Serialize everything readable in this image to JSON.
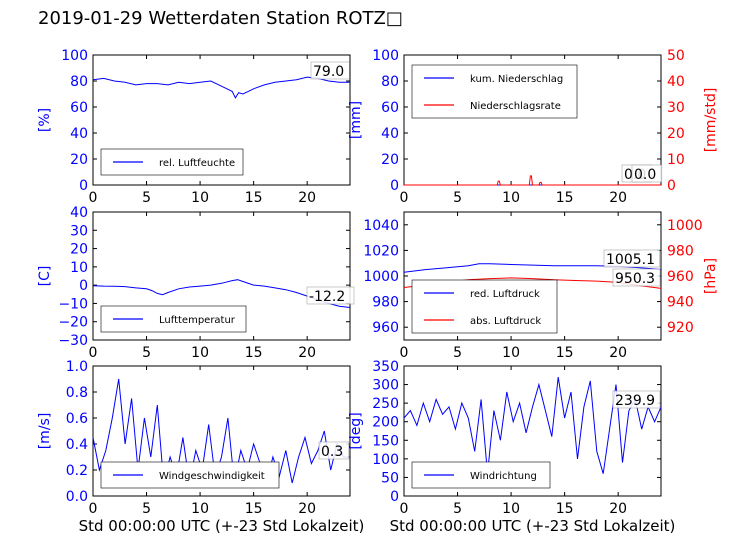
{
  "title": "2019-01-29 Wetterdaten Station ROTZ□",
  "colors": {
    "primary": "#0000ff",
    "secondary": "#ff0000",
    "text": "#000000"
  },
  "chart_data": [
    {
      "id": "humidity",
      "type": "line",
      "xlim": [
        0,
        24
      ],
      "ylim": [
        0,
        100
      ],
      "xticks": [
        "0",
        "5",
        "10",
        "15",
        "20"
      ],
      "yticks": [
        "0",
        "20",
        "40",
        "60",
        "80",
        "100"
      ],
      "ylabel": "[%]",
      "xlabel": "",
      "legend": [
        "rel. Luftfeuchte"
      ],
      "legend_position": "lower-left",
      "last_value": "79.0",
      "series": [
        {
          "name": "rel. Luftfeuchte",
          "color": "#0000ff",
          "x": [
            0,
            1,
            2,
            3,
            4,
            5,
            6,
            7,
            8,
            9,
            10,
            11,
            12,
            12.5,
            13,
            13.3,
            13.6,
            14,
            14.5,
            15,
            16,
            17,
            18,
            19,
            20,
            21,
            22,
            23,
            24
          ],
          "y": [
            81,
            82,
            80,
            79,
            77,
            78,
            78,
            77,
            79,
            78,
            79,
            80,
            76,
            74,
            72,
            67,
            71,
            70,
            72,
            74,
            77,
            79,
            80,
            81,
            83,
            82,
            80,
            79,
            79
          ]
        }
      ]
    },
    {
      "id": "precipitation",
      "type": "line",
      "xlim": [
        0,
        24
      ],
      "ylim": [
        0,
        100
      ],
      "y2lim": [
        0,
        50
      ],
      "xticks": [
        "0",
        "5",
        "10",
        "15",
        "20"
      ],
      "yticks": [
        "0",
        "20",
        "40",
        "60",
        "80",
        "100"
      ],
      "y2ticks": [
        "0",
        "10",
        "20",
        "30",
        "40",
        "50"
      ],
      "ylabel": "[mm]",
      "y2label": "[mm/std]",
      "legend": [
        "kum. Niederschlag",
        "Niederschlagsrate"
      ],
      "legend_position": "upper-left",
      "last_value_1": "0.0",
      "last_value_2": "0.0",
      "series": [
        {
          "name": "kum. Niederschlag",
          "color": "#0000ff",
          "x": [
            0,
            24
          ],
          "y": [
            0,
            0
          ]
        },
        {
          "name": "Niederschlagsrate",
          "color": "#ff0000",
          "axis": "right",
          "x": [
            0,
            8.7,
            8.8,
            8.9,
            9,
            11.7,
            11.8,
            11.9,
            12,
            12.6,
            12.7,
            12.8,
            12.9,
            24
          ],
          "y": [
            0,
            0,
            1.5,
            1.5,
            0,
            0,
            3.5,
            3.5,
            0,
            0,
            1,
            1,
            0,
            0
          ]
        }
      ]
    },
    {
      "id": "temperature",
      "type": "line",
      "xlim": [
        0,
        24
      ],
      "ylim": [
        -30,
        40
      ],
      "xticks": [
        "0",
        "5",
        "10",
        "15",
        "20"
      ],
      "yticks": [
        "−30",
        "−20",
        "−10",
        "0",
        "10",
        "20",
        "30",
        "40"
      ],
      "ylabel": "[C]",
      "legend": [
        "Lufttemperatur"
      ],
      "legend_position": "lower-left",
      "last_value": "-12.2",
      "series": [
        {
          "name": "Lufttemperatur",
          "color": "#0000ff",
          "x": [
            0,
            1,
            2,
            3,
            4,
            5,
            5.5,
            6,
            6.5,
            7,
            8,
            9,
            10,
            11,
            12,
            13,
            13.5,
            14,
            15,
            16,
            17,
            18,
            19,
            20,
            21,
            22,
            23,
            24
          ],
          "y": [
            -0.3,
            -0.5,
            -0.6,
            -0.8,
            -1.5,
            -2,
            -3,
            -4.5,
            -5.2,
            -4,
            -2,
            -1,
            -0.5,
            0,
            1,
            2.5,
            3,
            2,
            0,
            -0.5,
            -1.5,
            -2.5,
            -4,
            -6,
            -8,
            -10,
            -11.5,
            -12.2
          ]
        }
      ]
    },
    {
      "id": "pressure",
      "type": "line",
      "xlim": [
        0,
        24
      ],
      "ylim": [
        950,
        1050
      ],
      "y2lim": [
        910,
        1010
      ],
      "xticks": [
        "0",
        "5",
        "10",
        "15",
        "20"
      ],
      "yticks": [
        "960",
        "980",
        "1000",
        "1020",
        "1040"
      ],
      "y2ticks": [
        "920",
        "940",
        "960",
        "980",
        "1000"
      ],
      "ylabel": "",
      "y2label": "[hPa]",
      "legend": [
        "red. Luftdruck",
        "abs. Luftdruck"
      ],
      "legend_position": "lower-left",
      "last_value_1": "1005.1",
      "last_value_2": "950.3",
      "series": [
        {
          "name": "red. Luftdruck",
          "color": "#0000ff",
          "x": [
            0,
            2,
            4,
            6,
            7,
            8,
            10,
            12,
            14,
            16,
            18,
            20,
            22,
            24
          ],
          "y": [
            1003,
            1005,
            1006.5,
            1008,
            1009.5,
            1009.5,
            1009,
            1008.5,
            1008,
            1008,
            1008,
            1007.5,
            1006.5,
            1005.1
          ]
        },
        {
          "name": "abs. Luftdruck",
          "color": "#ff0000",
          "axis": "right",
          "x": [
            0,
            2,
            4,
            6,
            8,
            10,
            12,
            14,
            16,
            18,
            20,
            22,
            24
          ],
          "y": [
            951,
            953,
            955,
            957,
            958,
            958.5,
            958,
            957,
            956.5,
            956,
            955,
            952.5,
            950.3
          ]
        }
      ]
    },
    {
      "id": "windspeed",
      "type": "line",
      "xlim": [
        0,
        24
      ],
      "ylim": [
        0,
        1.0
      ],
      "xticks": [
        "0",
        "5",
        "10",
        "15",
        "20"
      ],
      "yticks": [
        "0.0",
        "0.2",
        "0.4",
        "0.6",
        "0.8",
        "1.0"
      ],
      "ylabel": "[m/s]",
      "xlabel": "Std 00:00:00 UTC (+-23 Std Lokalzeit)",
      "legend": [
        "Windgeschwindigkeit"
      ],
      "legend_position": "lower-left",
      "last_value": "0.3",
      "series": [
        {
          "name": "Windgeschwindigkeit",
          "color": "#0000ff",
          "x": [
            0,
            0.6,
            1.2,
            1.8,
            2.4,
            3,
            3.6,
            4.2,
            4.8,
            5.4,
            6,
            6.6,
            7.2,
            7.8,
            8.4,
            9,
            9.6,
            10.2,
            10.8,
            11.4,
            12,
            12.6,
            13.2,
            13.8,
            14.4,
            15,
            15.6,
            16.2,
            16.8,
            17.4,
            18,
            18.6,
            19.2,
            19.8,
            20.4,
            21,
            21.6,
            22.2,
            22.8,
            23.4,
            24
          ],
          "y": [
            0.45,
            0.2,
            0.35,
            0.6,
            0.9,
            0.4,
            0.75,
            0.2,
            0.6,
            0.3,
            0.7,
            0.1,
            0.3,
            0.15,
            0.45,
            0.1,
            0.35,
            0.2,
            0.55,
            0.15,
            0.3,
            0.6,
            0.1,
            0.35,
            0.2,
            0.4,
            0.25,
            0.1,
            0.3,
            0.15,
            0.35,
            0.1,
            0.3,
            0.45,
            0.25,
            0.35,
            0.5,
            0.2,
            0.4,
            0.3,
            0.3
          ]
        }
      ]
    },
    {
      "id": "winddirection",
      "type": "line",
      "xlim": [
        0,
        24
      ],
      "ylim": [
        0,
        350
      ],
      "xticks": [
        "0",
        "5",
        "10",
        "15",
        "20"
      ],
      "yticks": [
        "0",
        "50",
        "100",
        "150",
        "200",
        "250",
        "300",
        "350"
      ],
      "ylabel": "[deg]",
      "xlabel": "Std 00:00:00 UTC (+-23 Std Lokalzeit)",
      "legend": [
        "Windrichtung"
      ],
      "legend_position": "lower-left",
      "last_value": "239.9",
      "series": [
        {
          "name": "Windrichtung",
          "color": "#0000ff",
          "x": [
            0,
            0.6,
            1.2,
            1.8,
            2.4,
            3,
            3.6,
            4.2,
            4.8,
            5.4,
            6,
            6.6,
            7.2,
            7.8,
            8.4,
            9,
            9.6,
            10.2,
            10.8,
            11.4,
            12,
            12.6,
            13.2,
            13.8,
            14.4,
            15,
            15.6,
            16.2,
            16.8,
            17.4,
            18,
            18.6,
            19.2,
            19.8,
            20.4,
            21,
            21.6,
            22.2,
            22.8,
            23.4,
            24
          ],
          "y": [
            210,
            230,
            190,
            250,
            200,
            260,
            220,
            240,
            180,
            250,
            210,
            120,
            260,
            60,
            230,
            150,
            280,
            200,
            250,
            170,
            240,
            300,
            230,
            160,
            320,
            210,
            280,
            100,
            240,
            310,
            120,
            60,
            180,
            300,
            90,
            230,
            260,
            180,
            240,
            200,
            240
          ]
        }
      ]
    }
  ]
}
